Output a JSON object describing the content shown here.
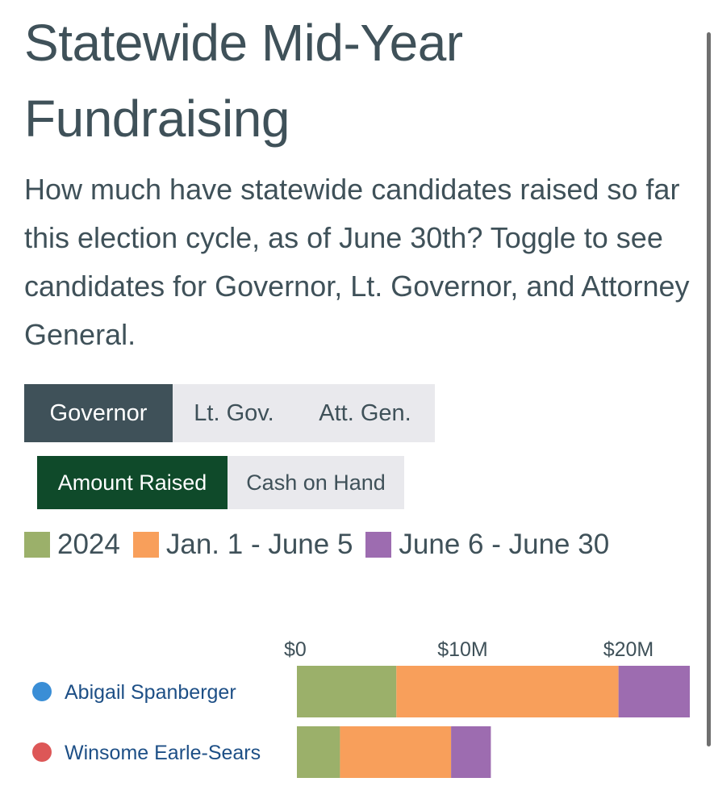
{
  "page": {
    "title": "Statewide Mid-Year Fundraising",
    "subtitle": "How much have statewide candidates raised so far this election cycle, as of June 30th? Toggle to see candidates for Governor, Lt. Governor, and Attorney General."
  },
  "office_toggle": {
    "options": [
      "Governor",
      "Lt. Gov.",
      "Att. Gen."
    ],
    "selected": "Governor"
  },
  "metric_toggle": {
    "options": [
      "Amount Raised",
      "Cash on Hand"
    ],
    "selected": "Amount Raised"
  },
  "colors": {
    "series_2024": "#9bb06a",
    "series_jan_june5": "#f89f5b",
    "series_june6_june30": "#9d6cb0",
    "dem_dot": "#3a8ed6",
    "rep_dot": "#dd5757",
    "active_office": "#3f5159",
    "active_metric": "#0f4a2a"
  },
  "chart_data": {
    "type": "bar",
    "orientation": "horizontal",
    "stacked": true,
    "categories": [
      "Abigail Spanberger",
      "Winsome Earle-Sears"
    ],
    "party_colors": [
      "#3a8ed6",
      "#dd5757"
    ],
    "series": [
      {
        "name": "2024",
        "color": "#9bb06a",
        "values": [
          6.0,
          2.6
        ]
      },
      {
        "name": "Jan. 1 - June 5",
        "color": "#f89f5b",
        "values": [
          13.4,
          6.7
        ]
      },
      {
        "name": "June 6 - June 30",
        "color": "#9d6cb0",
        "values": [
          4.3,
          2.4
        ]
      }
    ],
    "x_ticks": [
      0,
      10,
      20
    ],
    "x_tick_labels": [
      "$0",
      "$10M",
      "$20M"
    ],
    "xlim": [
      0,
      23.7
    ],
    "units": "millions USD",
    "legend_position": "top"
  }
}
